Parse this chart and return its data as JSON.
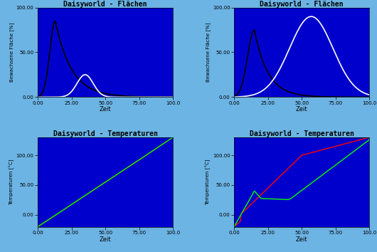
{
  "title_flaechen": "Daisyworld - Flächen",
  "title_temp": "Daisyworld - Temperaturen",
  "ylabel_flaechen": "Bewachsene Fläche [%]",
  "ylabel_temp": "Temperaturen [°C]",
  "xlabel": "Zeit",
  "bg_color": "#0000CC",
  "outer_bg": "#6CB4E4",
  "ylim_flaechen": [
    0,
    100
  ],
  "xlim": [
    0,
    100
  ],
  "ylim_temp": [
    -20,
    130
  ],
  "yticks_flaechen": [
    0.0,
    50.0,
    100.0
  ],
  "ytick_labels_flaechen": [
    "0.00",
    "50.00",
    "100.00"
  ],
  "xticks": [
    0.0,
    25.0,
    50.0,
    75.0,
    100.0
  ],
  "xtick_labels": [
    "0.00",
    "25.00",
    "50.00",
    "75.00",
    "100.0"
  ],
  "yticks_temp": [
    0.0,
    50.0,
    100.0
  ],
  "ytick_labels_temp": [
    "0.00",
    "50.00",
    "100.00"
  ]
}
